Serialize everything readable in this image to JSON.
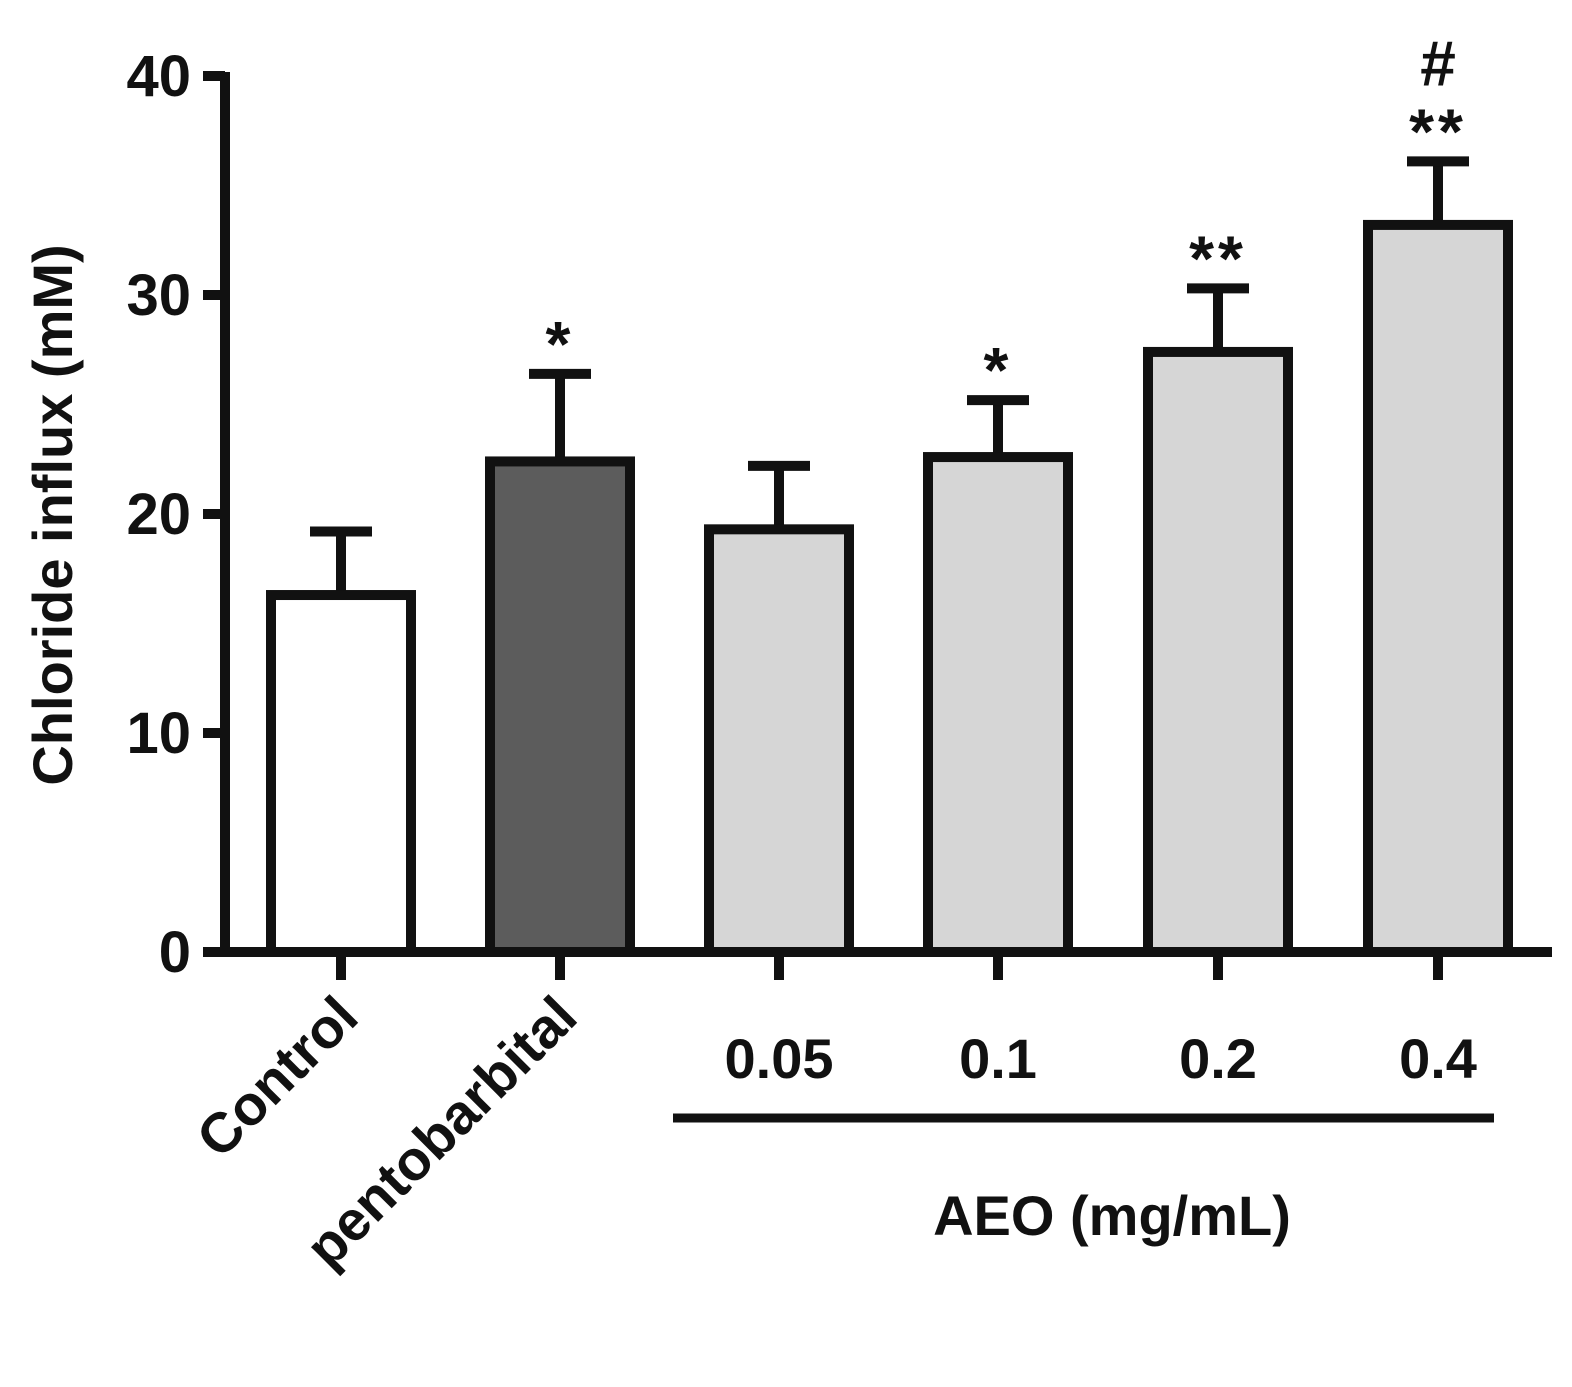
{
  "chart_data": {
    "type": "bar",
    "title": "",
    "xlabel": "",
    "ylabel": "Chloride influx (mM)",
    "ylim": [
      0,
      40
    ],
    "yticks": [
      0,
      10,
      20,
      30,
      40
    ],
    "categories": [
      "Control",
      "pentobarbital",
      "0.05",
      "0.1",
      "0.2",
      "0.4"
    ],
    "values": [
      16.3,
      22.4,
      19.3,
      22.6,
      27.4,
      33.2
    ],
    "errors": [
      2.9,
      4.0,
      2.9,
      2.6,
      2.9,
      2.9
    ],
    "significance": [
      "",
      "*",
      "",
      "*",
      "**",
      "**"
    ],
    "significance_secondary": [
      "",
      "",
      "",
      "",
      "",
      "#"
    ],
    "fill_colors": [
      "#ffffff",
      "#5c5c5c",
      "#d6d6d6",
      "#d6d6d6",
      "#d6d6d6",
      "#d6d6d6"
    ],
    "group_label": "AEO (mg/mL)",
    "group_members": [
      "0.05",
      "0.1",
      "0.2",
      "0.4"
    ]
  }
}
